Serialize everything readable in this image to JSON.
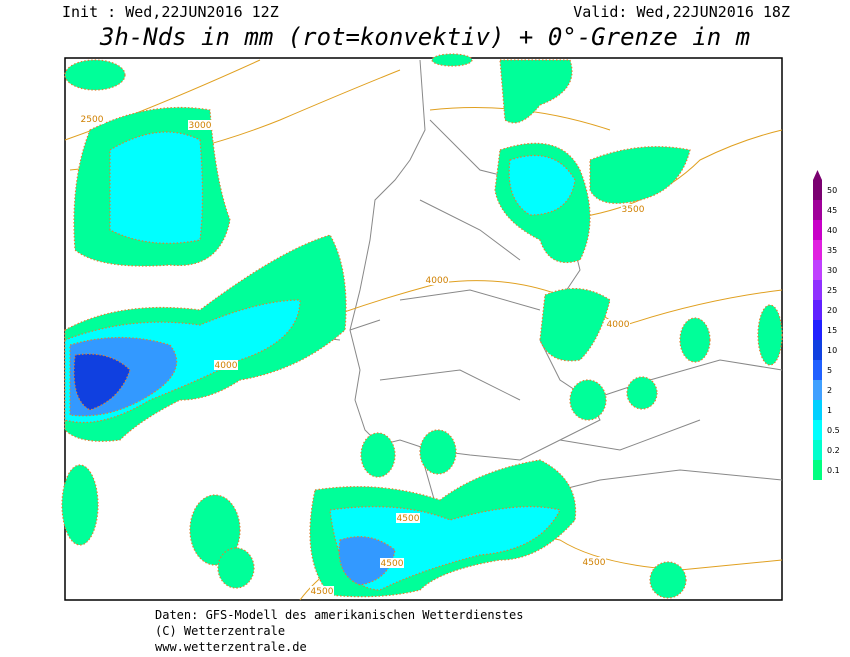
{
  "header": {
    "init": "Init : Wed,22JUN2016 12Z",
    "valid": "Valid: Wed,22JUN2016 18Z",
    "title": "3h-Nds in mm (rot=konvektiv) + 0°-Grenze in m"
  },
  "legend": {
    "levels": [
      {
        "label": "50",
        "color": "#7a0070"
      },
      {
        "label": "45",
        "color": "#a0009a"
      },
      {
        "label": "40",
        "color": "#c800c8"
      },
      {
        "label": "35",
        "color": "#e020e0"
      },
      {
        "label": "30",
        "color": "#c040ff"
      },
      {
        "label": "25",
        "color": "#9030ff"
      },
      {
        "label": "20",
        "color": "#6020ff"
      },
      {
        "label": "15",
        "color": "#2020ff"
      },
      {
        "label": "10",
        "color": "#1040e0"
      },
      {
        "label": "5",
        "color": "#2060ff"
      },
      {
        "label": "2",
        "color": "#40a0ff"
      },
      {
        "label": "1",
        "color": "#00d0ff"
      },
      {
        "label": "0.5",
        "color": "#00ffff"
      },
      {
        "label": "0.2",
        "color": "#00ffcc"
      },
      {
        "label": "0.1",
        "color": "#00ff80"
      }
    ]
  },
  "contour_labels": [
    "2500",
    "3000",
    "3500",
    "4000",
    "4000",
    "4000",
    "4500",
    "4500",
    "4500",
    "4500"
  ],
  "footer": {
    "source": "Daten: GFS-Modell des amerikanischen Wetterdienstes",
    "copyright": "(C) Wetterzentrale",
    "url": "www.wetterzentrale.de"
  }
}
